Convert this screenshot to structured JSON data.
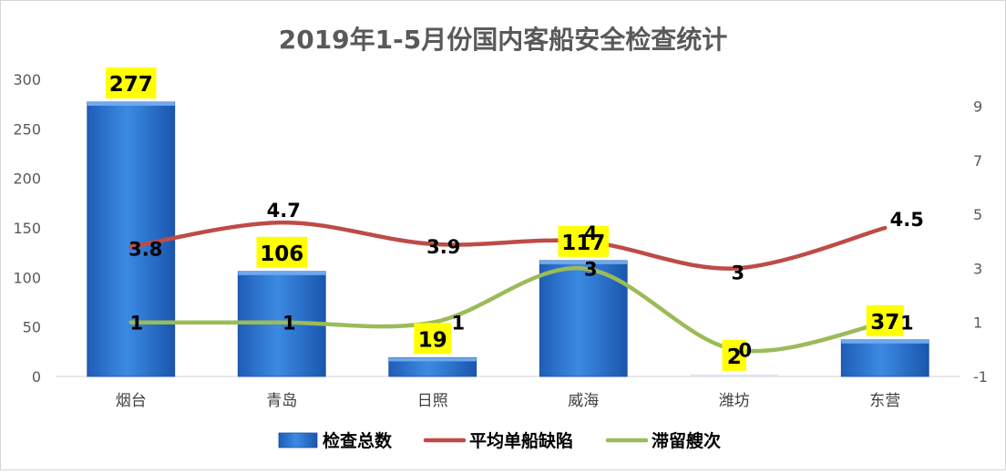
{
  "chart_data": {
    "type": "bar",
    "title": "2019年1-5月份国内客船安全检查统计",
    "categories": [
      "烟台",
      "青岛",
      "日照",
      "威海",
      "潍坊",
      "东营"
    ],
    "series": [
      {
        "name": "检查总数",
        "kind": "bar",
        "axis": "left",
        "values": [
          277,
          106,
          19,
          117,
          2,
          37
        ],
        "color": "#2e75d1",
        "labels": [
          "277",
          "106",
          "19",
          "117",
          "2",
          "37"
        ]
      },
      {
        "name": "平均单船缺陷",
        "kind": "line",
        "axis": "right",
        "values": [
          3.8,
          4.7,
          3.9,
          4,
          3,
          4.5
        ],
        "color": "#be4b48",
        "labels": [
          "3.8",
          "4.7",
          "3.9",
          "4",
          "3",
          "4.5"
        ]
      },
      {
        "name": "滞留艘次",
        "kind": "line",
        "axis": "right",
        "values": [
          1,
          1,
          1,
          3,
          0,
          1
        ],
        "color": "#9bbb59",
        "labels": [
          "1",
          "1",
          "1",
          "3",
          "0",
          "1"
        ]
      }
    ],
    "y_left": {
      "range": [
        0,
        300
      ],
      "ticks": [
        "0",
        "50",
        "100",
        "150",
        "200",
        "250",
        "300"
      ]
    },
    "y_right": {
      "range": [
        -1,
        10
      ],
      "ticks": [
        "-1",
        "1",
        "3",
        "5",
        "7",
        "9"
      ]
    },
    "grid": false,
    "legend_position": "bottom",
    "label_highlight_color": "#ffff00"
  }
}
